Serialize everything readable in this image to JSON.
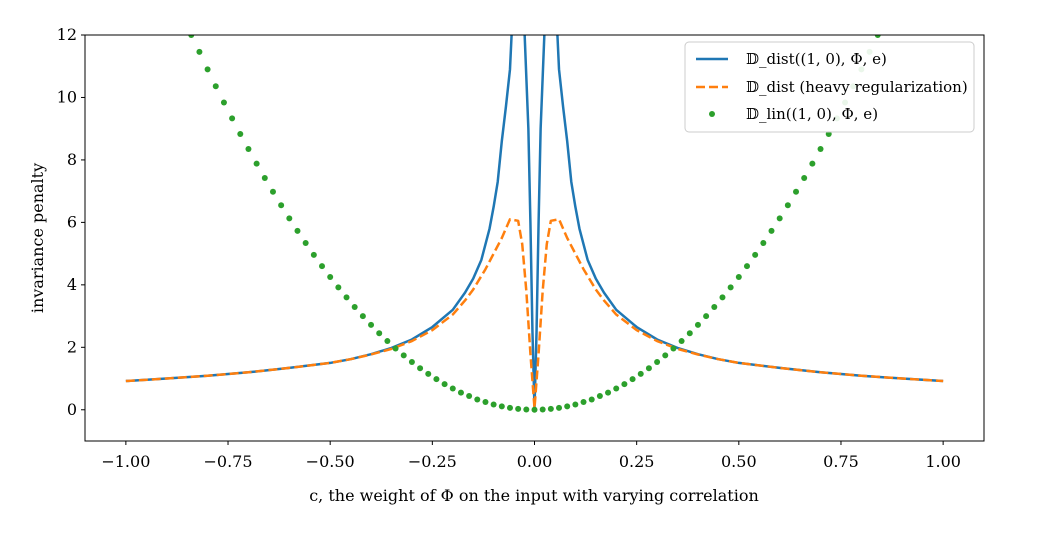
{
  "chart_data": {
    "type": "line",
    "title": "",
    "xlabel": "c, the weight of Φ on the input with varying correlation",
    "ylabel": "invariance penalty",
    "xlim": [
      -1.1,
      1.1
    ],
    "ylim": [
      -1,
      12
    ],
    "xticks": [
      -1.0,
      -0.75,
      -0.5,
      -0.25,
      0.0,
      0.25,
      0.5,
      0.75,
      1.0
    ],
    "xtick_labels": [
      "−1.00",
      "−0.75",
      "−0.50",
      "−0.25",
      "0.00",
      "0.25",
      "0.50",
      "0.75",
      "1.00"
    ],
    "yticks": [
      0,
      2,
      4,
      6,
      8,
      10,
      12
    ],
    "ytick_labels": [
      "0",
      "2",
      "4",
      "6",
      "8",
      "10",
      "12"
    ],
    "grid": false,
    "legend_position": "top-right",
    "legend": [
      {
        "label": "𝔻_dist((1, 0), Φ, e)",
        "color": "#1f77b4",
        "style": "solid"
      },
      {
        "label": "𝔻_dist (heavy regularization)",
        "color": "#ff7f0e",
        "style": "dashed"
      },
      {
        "label": "𝔻_lin((1, 0), Φ, e)",
        "color": "#2ca02c",
        "style": "dotted"
      }
    ],
    "series": [
      {
        "name": "𝔻_dist((1, 0), Φ, e)",
        "color": "#1f77b4",
        "style": "solid",
        "points": [
          [
            -1.0,
            0.92
          ],
          [
            -0.9,
            1.0
          ],
          [
            -0.8,
            1.09
          ],
          [
            -0.7,
            1.2
          ],
          [
            -0.6,
            1.34
          ],
          [
            -0.5,
            1.5
          ],
          [
            -0.45,
            1.62
          ],
          [
            -0.4,
            1.78
          ],
          [
            -0.35,
            1.98
          ],
          [
            -0.3,
            2.25
          ],
          [
            -0.25,
            2.65
          ],
          [
            -0.2,
            3.2
          ],
          [
            -0.17,
            3.75
          ],
          [
            -0.15,
            4.2
          ],
          [
            -0.13,
            4.8
          ],
          [
            -0.11,
            5.8
          ],
          [
            -0.1,
            6.5
          ],
          [
            -0.09,
            7.3
          ],
          [
            -0.08,
            8.6
          ],
          [
            -0.07,
            9.7
          ],
          [
            -0.06,
            10.9
          ],
          [
            -0.055,
            12.3
          ],
          [
            -0.025,
            12.3
          ],
          [
            -0.015,
            9.0
          ],
          [
            -0.01,
            6.0
          ],
          [
            -0.005,
            2.5
          ],
          [
            0.0,
            0.05
          ],
          [
            0.005,
            2.5
          ],
          [
            0.01,
            6.0
          ],
          [
            0.015,
            9.0
          ],
          [
            0.025,
            12.3
          ],
          [
            0.055,
            12.3
          ],
          [
            0.06,
            10.9
          ],
          [
            0.07,
            9.7
          ],
          [
            0.08,
            8.6
          ],
          [
            0.09,
            7.3
          ],
          [
            0.1,
            6.5
          ],
          [
            0.11,
            5.8
          ],
          [
            0.13,
            4.8
          ],
          [
            0.15,
            4.2
          ],
          [
            0.17,
            3.75
          ],
          [
            0.2,
            3.2
          ],
          [
            0.25,
            2.65
          ],
          [
            0.3,
            2.25
          ],
          [
            0.35,
            1.98
          ],
          [
            0.4,
            1.78
          ],
          [
            0.45,
            1.62
          ],
          [
            0.5,
            1.5
          ],
          [
            0.6,
            1.34
          ],
          [
            0.7,
            1.2
          ],
          [
            0.8,
            1.09
          ],
          [
            0.9,
            1.0
          ],
          [
            1.0,
            0.92
          ]
        ]
      },
      {
        "name": "𝔻_dist (heavy regularization)",
        "color": "#ff7f0e",
        "style": "dashed",
        "points": [
          [
            -1.0,
            0.92
          ],
          [
            -0.9,
            1.0
          ],
          [
            -0.8,
            1.09
          ],
          [
            -0.7,
            1.2
          ],
          [
            -0.6,
            1.34
          ],
          [
            -0.5,
            1.5
          ],
          [
            -0.45,
            1.62
          ],
          [
            -0.4,
            1.77
          ],
          [
            -0.35,
            1.95
          ],
          [
            -0.3,
            2.2
          ],
          [
            -0.25,
            2.55
          ],
          [
            -0.2,
            3.05
          ],
          [
            -0.17,
            3.5
          ],
          [
            -0.15,
            3.85
          ],
          [
            -0.12,
            4.5
          ],
          [
            -0.1,
            5.0
          ],
          [
            -0.08,
            5.5
          ],
          [
            -0.06,
            6.1
          ],
          [
            -0.04,
            6.05
          ],
          [
            -0.03,
            5.3
          ],
          [
            -0.02,
            3.8
          ],
          [
            -0.01,
            1.8
          ],
          [
            0.0,
            0.05
          ],
          [
            0.01,
            1.8
          ],
          [
            0.02,
            3.8
          ],
          [
            0.03,
            5.3
          ],
          [
            0.04,
            6.05
          ],
          [
            0.06,
            6.1
          ],
          [
            0.08,
            5.5
          ],
          [
            0.1,
            5.0
          ],
          [
            0.12,
            4.5
          ],
          [
            0.15,
            3.85
          ],
          [
            0.17,
            3.5
          ],
          [
            0.2,
            3.05
          ],
          [
            0.25,
            2.55
          ],
          [
            0.3,
            2.2
          ],
          [
            0.35,
            1.95
          ],
          [
            0.4,
            1.77
          ],
          [
            0.45,
            1.62
          ],
          [
            0.5,
            1.5
          ],
          [
            0.6,
            1.34
          ],
          [
            0.7,
            1.2
          ],
          [
            0.8,
            1.09
          ],
          [
            0.9,
            1.0
          ],
          [
            1.0,
            0.92
          ]
        ]
      },
      {
        "name": "𝔻_lin((1, 0), Φ, e)",
        "color": "#2ca02c",
        "style": "dotted",
        "points": [
          [
            -0.84,
            12.0
          ],
          [
            -0.82,
            11.46
          ],
          [
            -0.8,
            10.9
          ],
          [
            -0.78,
            10.36
          ],
          [
            -0.76,
            9.84
          ],
          [
            -0.74,
            9.33
          ],
          [
            -0.72,
            8.83
          ],
          [
            -0.7,
            8.35
          ],
          [
            -0.68,
            7.88
          ],
          [
            -0.66,
            7.42
          ],
          [
            -0.64,
            6.98
          ],
          [
            -0.62,
            6.55
          ],
          [
            -0.6,
            6.13
          ],
          [
            -0.58,
            5.73
          ],
          [
            -0.56,
            5.34
          ],
          [
            -0.54,
            4.96
          ],
          [
            -0.52,
            4.6
          ],
          [
            -0.5,
            4.25
          ],
          [
            -0.48,
            3.92
          ],
          [
            -0.46,
            3.6
          ],
          [
            -0.44,
            3.29
          ],
          [
            -0.42,
            3.0
          ],
          [
            -0.4,
            2.72
          ],
          [
            -0.38,
            2.45
          ],
          [
            -0.36,
            2.2
          ],
          [
            -0.34,
            1.96
          ],
          [
            -0.32,
            1.74
          ],
          [
            -0.3,
            1.53
          ],
          [
            -0.28,
            1.33
          ],
          [
            -0.26,
            1.15
          ],
          [
            -0.24,
            0.98
          ],
          [
            -0.22,
            0.82
          ],
          [
            -0.2,
            0.68
          ],
          [
            -0.18,
            0.55
          ],
          [
            -0.16,
            0.44
          ],
          [
            -0.14,
            0.33
          ],
          [
            -0.12,
            0.25
          ],
          [
            -0.1,
            0.17
          ],
          [
            -0.08,
            0.11
          ],
          [
            -0.06,
            0.06
          ],
          [
            -0.04,
            0.03
          ],
          [
            -0.02,
            0.01
          ],
          [
            0.0,
            0.0
          ],
          [
            0.02,
            0.01
          ],
          [
            0.04,
            0.03
          ],
          [
            0.06,
            0.06
          ],
          [
            0.08,
            0.11
          ],
          [
            0.1,
            0.17
          ],
          [
            0.12,
            0.25
          ],
          [
            0.14,
            0.33
          ],
          [
            0.16,
            0.44
          ],
          [
            0.18,
            0.55
          ],
          [
            0.2,
            0.68
          ],
          [
            0.22,
            0.82
          ],
          [
            0.24,
            0.98
          ],
          [
            0.26,
            1.15
          ],
          [
            0.28,
            1.33
          ],
          [
            0.3,
            1.53
          ],
          [
            0.32,
            1.74
          ],
          [
            0.34,
            1.96
          ],
          [
            0.36,
            2.2
          ],
          [
            0.38,
            2.45
          ],
          [
            0.4,
            2.72
          ],
          [
            0.42,
            3.0
          ],
          [
            0.44,
            3.29
          ],
          [
            0.46,
            3.6
          ],
          [
            0.48,
            3.92
          ],
          [
            0.5,
            4.25
          ],
          [
            0.52,
            4.6
          ],
          [
            0.54,
            4.96
          ],
          [
            0.56,
            5.34
          ],
          [
            0.58,
            5.73
          ],
          [
            0.6,
            6.13
          ],
          [
            0.62,
            6.55
          ],
          [
            0.64,
            6.98
          ],
          [
            0.66,
            7.42
          ],
          [
            0.68,
            7.88
          ],
          [
            0.7,
            8.35
          ],
          [
            0.72,
            8.83
          ],
          [
            0.74,
            9.33
          ],
          [
            0.76,
            9.84
          ],
          [
            0.78,
            10.36
          ],
          [
            0.8,
            10.9
          ],
          [
            0.82,
            11.46
          ],
          [
            0.84,
            12.0
          ]
        ]
      }
    ]
  }
}
